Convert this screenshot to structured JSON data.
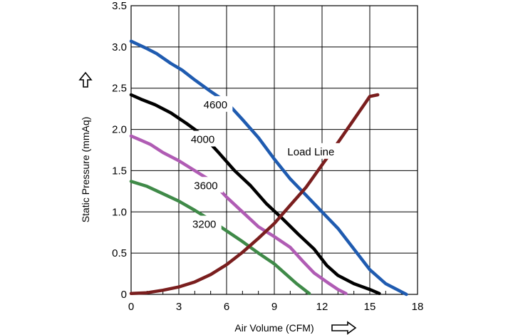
{
  "chart_data": {
    "type": "line",
    "title": "",
    "xlabel": "Air Volume (CFM)",
    "ylabel": "Static Pressure (mmAq)",
    "xlim": [
      0,
      18
    ],
    "ylim": [
      0,
      3.5
    ],
    "x_ticks": [
      "0",
      "3",
      "6",
      "9",
      "12",
      "15",
      "18"
    ],
    "y_ticks": [
      "0",
      "0.5",
      "1.0",
      "1.5",
      "2.0",
      "2.5",
      "3.0",
      "3.5"
    ],
    "grid": true,
    "series": [
      {
        "name": "4600",
        "color": "#1f5bb0",
        "points": [
          [
            0,
            3.07
          ],
          [
            1,
            2.98
          ],
          [
            1.6,
            2.92
          ],
          [
            2.5,
            2.8
          ],
          [
            3.2,
            2.72
          ],
          [
            4,
            2.6
          ],
          [
            5,
            2.46
          ],
          [
            6,
            2.33
          ],
          [
            7,
            2.12
          ],
          [
            8,
            1.9
          ],
          [
            9,
            1.64
          ],
          [
            10,
            1.4
          ],
          [
            11,
            1.2
          ],
          [
            12,
            1.0
          ],
          [
            13,
            0.8
          ],
          [
            14,
            0.55
          ],
          [
            15,
            0.3
          ],
          [
            16,
            0.13
          ],
          [
            17.3,
            0.0
          ]
        ]
      },
      {
        "name": "4000",
        "color": "#000000",
        "points": [
          [
            0,
            2.42
          ],
          [
            0.7,
            2.36
          ],
          [
            1.5,
            2.3
          ],
          [
            2.5,
            2.2
          ],
          [
            3.5,
            2.07
          ],
          [
            4.5,
            1.93
          ],
          [
            5.5,
            1.72
          ],
          [
            6.5,
            1.5
          ],
          [
            7.5,
            1.32
          ],
          [
            8.5,
            1.1
          ],
          [
            9.5,
            0.92
          ],
          [
            10.5,
            0.73
          ],
          [
            11.5,
            0.55
          ],
          [
            12.3,
            0.35
          ],
          [
            13,
            0.23
          ],
          [
            14,
            0.13
          ],
          [
            15,
            0.06
          ],
          [
            15.6,
            0.01
          ]
        ]
      },
      {
        "name": "3600",
        "color": "#b05cb4",
        "points": [
          [
            0,
            1.92
          ],
          [
            0.6,
            1.87
          ],
          [
            1.2,
            1.82
          ],
          [
            2,
            1.72
          ],
          [
            3,
            1.62
          ],
          [
            4,
            1.5
          ],
          [
            5,
            1.38
          ],
          [
            6,
            1.18
          ],
          [
            7,
            1.0
          ],
          [
            8,
            0.82
          ],
          [
            9,
            0.7
          ],
          [
            10,
            0.57
          ],
          [
            10.8,
            0.4
          ],
          [
            11.5,
            0.26
          ],
          [
            12.3,
            0.15
          ],
          [
            13,
            0.06
          ],
          [
            13.5,
            0.01
          ]
        ]
      },
      {
        "name": "3200",
        "color": "#3f8a48",
        "points": [
          [
            0,
            1.37
          ],
          [
            1,
            1.31
          ],
          [
            2,
            1.22
          ],
          [
            3,
            1.13
          ],
          [
            4,
            1.02
          ],
          [
            5,
            0.9
          ],
          [
            6,
            0.77
          ],
          [
            7,
            0.64
          ],
          [
            8,
            0.5
          ],
          [
            9,
            0.37
          ],
          [
            9.7,
            0.25
          ],
          [
            10.4,
            0.13
          ],
          [
            11.2,
            0.01
          ]
        ]
      },
      {
        "name": "Load Line",
        "color": "#7a1e1e",
        "points": [
          [
            0,
            0.01
          ],
          [
            1,
            0.02
          ],
          [
            2,
            0.05
          ],
          [
            3,
            0.09
          ],
          [
            4,
            0.15
          ],
          [
            5,
            0.24
          ],
          [
            6,
            0.36
          ],
          [
            7,
            0.51
          ],
          [
            8,
            0.68
          ],
          [
            9,
            0.86
          ],
          [
            10,
            1.08
          ],
          [
            11,
            1.3
          ],
          [
            12,
            1.57
          ],
          [
            13,
            1.84
          ],
          [
            14,
            2.12
          ],
          [
            15,
            2.4
          ],
          [
            15.5,
            2.42
          ]
        ]
      }
    ],
    "annotations": [
      {
        "text": "4600",
        "x": 5.3,
        "y": 2.3
      },
      {
        "text": "4000",
        "x": 4.5,
        "y": 1.88
      },
      {
        "text": "3600",
        "x": 4.7,
        "y": 1.32
      },
      {
        "text": "3200",
        "x": 4.6,
        "y": 0.85
      },
      {
        "text": "Load Line",
        "x": 11.3,
        "y": 1.73
      }
    ]
  }
}
